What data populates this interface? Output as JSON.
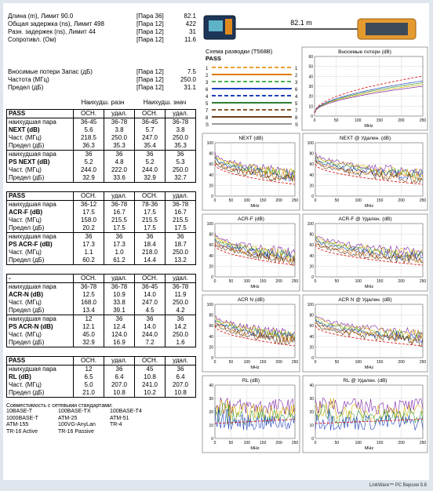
{
  "summary": {
    "rows": [
      [
        "Длина (m), Лимит 90.0",
        "[Пара 36]",
        "82.1"
      ],
      [
        "Общая задержка (ns), Лимит 498",
        "[Пара 12]",
        "422"
      ],
      [
        "Разн. задержек (ns), Лимит 44",
        "[Пара 12]",
        "31"
      ],
      [
        "Сопротивл. (Ом)",
        "[Пара 12]",
        "11.6"
      ]
    ],
    "loss_rows": [
      [
        "Вносимые потери Запас (дБ)",
        "[Пара 12]",
        "7.5"
      ],
      [
        "Частота (МГц)",
        "[Пара 12]",
        "250.0"
      ],
      [
        "Предел (дБ)",
        "[Пара 12]",
        "31.1"
      ]
    ]
  },
  "column_headers": [
    "Наихудш. разн",
    "Наихудш. знач"
  ],
  "tables": [
    {
      "rows": [
        [
          "PASS",
          "ОСН.",
          "удал.",
          "ОСН.",
          "удал."
        ],
        [
          "наихудшая пара",
          "36-45",
          "36-78",
          "36-45",
          "36-78"
        ],
        [
          "NEXT (dB)",
          "5.6",
          "3.8",
          "5.7",
          "3.8"
        ],
        [
          "Част. (МГц)",
          "218.5",
          "250.0",
          "247.0",
          "250.0"
        ],
        [
          "Предел (дБ)",
          "36.3",
          "35.3",
          "35.4",
          "35.3"
        ],
        [
          "наихудшая пара",
          "36",
          "36",
          "36",
          "36"
        ],
        [
          "PS NEXT (dB)",
          "5.2",
          "4.8",
          "5.2",
          "5.3"
        ],
        [
          "Част. (МГц)",
          "244.0",
          "222.0",
          "244.0",
          "250.0"
        ],
        [
          "Предел (дБ)",
          "32.9",
          "33.6",
          "32.9",
          "32.7"
        ]
      ]
    },
    {
      "rows": [
        [
          "PASS",
          "ОСН.",
          "удал.",
          "ОСН.",
          "удал."
        ],
        [
          "наихудшая пара",
          "36-12",
          "36-78",
          "78-36",
          "36-78"
        ],
        [
          "ACR-F (dB)",
          "17.5",
          "16.7",
          "17.5",
          "16.7"
        ],
        [
          "Част. (МГц)",
          "158.0",
          "215.5",
          "215.5",
          "215.5"
        ],
        [
          "Предел (дБ)",
          "20.2",
          "17.5",
          "17.5",
          "17.5"
        ],
        [
          "наихудшая пара",
          "36",
          "36",
          "36",
          "36"
        ],
        [
          "PS ACR-F (dB)",
          "17.3",
          "17.3",
          "18.4",
          "18.7"
        ],
        [
          "Част. (МГц)",
          "1.1",
          "1.0",
          "218.0",
          "250.0"
        ],
        [
          "Предел (дБ)",
          "60.2",
          "61.2",
          "14.4",
          "13.2"
        ]
      ]
    },
    {
      "rows": [
        [
          "-",
          "ОСН.",
          "удал.",
          "ОСН.",
          "удал."
        ],
        [
          "наихудшая пара",
          "36-78",
          "36-78",
          "36-45",
          "36-78"
        ],
        [
          "ACR-N (dB)",
          "12.5",
          "10.9",
          "14.0",
          "11.9"
        ],
        [
          "Част. (МГц)",
          "168.0",
          "33.8",
          "247.0",
          "250.0"
        ],
        [
          "Предел (дБ)",
          "13.4",
          "39.1",
          "4.5",
          "4.2"
        ],
        [
          "наихудшая пара",
          "12",
          "36",
          "36",
          "36"
        ],
        [
          "PS ACR-N (dB)",
          "12.1",
          "12.4",
          "14.0",
          "14.2"
        ],
        [
          "Част. (МГц)",
          "45.0",
          "124.0",
          "244.0",
          "250.0"
        ],
        [
          "Предел (дБ)",
          "32.9",
          "16.9",
          "7.2",
          "1.6"
        ]
      ]
    },
    {
      "rows": [
        [
          "PASS",
          "ОСН.",
          "удал.",
          "ОСН.",
          "удал."
        ],
        [
          "наихудшая пара",
          "12",
          "36",
          "45",
          "36"
        ],
        [
          "RL (dB)",
          "6.5",
          "6.4",
          "10.8",
          "6.4"
        ],
        [
          "Част. (МГц)",
          "5.0",
          "207.0",
          "241.0",
          "207.0"
        ],
        [
          "Предел (дБ)",
          "21.0",
          "10.8",
          "10.2",
          "10.8"
        ]
      ]
    }
  ],
  "standards": {
    "title": "Совместимость с сетевыми стандартами:",
    "items": [
      "10BASE-T",
      "100BASE-TX",
      "100BASE-T4",
      "1000BASE-T",
      "ATM-25",
      "ATM-51",
      "ATM-155",
      "100VG-AnyLan",
      "TR-4",
      "TR-16 Active",
      "TR-16 Passive"
    ]
  },
  "length_label": "82.1 m",
  "wiremap": {
    "title": "Схема разводки (T568B)",
    "status": "PASS",
    "pins": [
      "1",
      "2",
      "3",
      "6",
      "4",
      "5",
      "7",
      "8",
      "S"
    ]
  },
  "plots": [
    {
      "title": "Вносимые потери (dB)",
      "yticks": [
        0,
        10,
        20,
        30,
        40,
        50,
        60
      ],
      "xticks": [
        0,
        50,
        100,
        150,
        200,
        250
      ],
      "xlabel": "MHz"
    },
    {
      "title": "NEXT (dB)",
      "yticks": [
        0,
        20,
        40,
        60,
        80,
        100
      ],
      "xticks": [
        0,
        50,
        100,
        150,
        200,
        250
      ],
      "xlabel": "MHz"
    },
    {
      "title": "NEXT @ Удален. (dB)",
      "yticks": [
        0,
        20,
        40,
        60,
        80,
        100
      ],
      "xticks": [
        0,
        50,
        100,
        150,
        200,
        250
      ],
      "xlabel": "MHz"
    },
    {
      "title": "ACR-F (dB)",
      "yticks": [
        0,
        20,
        40,
        60,
        80,
        100
      ],
      "xticks": [
        0,
        50,
        100,
        150,
        200,
        250
      ],
      "xlabel": "MHz"
    },
    {
      "title": "ACR-F @ Удален. (dB)",
      "yticks": [
        0,
        20,
        40,
        60,
        80,
        100
      ],
      "xticks": [
        0,
        50,
        100,
        150,
        200,
        250
      ],
      "xlabel": "MHz"
    },
    {
      "title": "ACR N (dB)",
      "yticks": [
        0,
        20,
        40,
        60,
        80,
        100
      ],
      "xticks": [
        0,
        50,
        100,
        150,
        200,
        250
      ],
      "xlabel": "MHz"
    },
    {
      "title": "ACR N @ Удален. (dB)",
      "yticks": [
        0,
        20,
        40,
        60,
        80,
        100
      ],
      "xticks": [
        0,
        50,
        100,
        150,
        200,
        250
      ],
      "xlabel": "MHz"
    },
    {
      "title": "RL (dB)",
      "yticks": [
        0,
        10,
        20,
        30,
        40
      ],
      "xticks": [
        0,
        50,
        100,
        150,
        200,
        250
      ],
      "xlabel": "MHz"
    },
    {
      "title": "RL @ Удален. (dB)",
      "yticks": [
        0,
        10,
        20,
        30,
        40
      ],
      "xticks": [
        0,
        50,
        100,
        150,
        200,
        250
      ],
      "xlabel": "MHz"
    }
  ],
  "footer": "LinkWare™ PC Версия 9.8"
}
